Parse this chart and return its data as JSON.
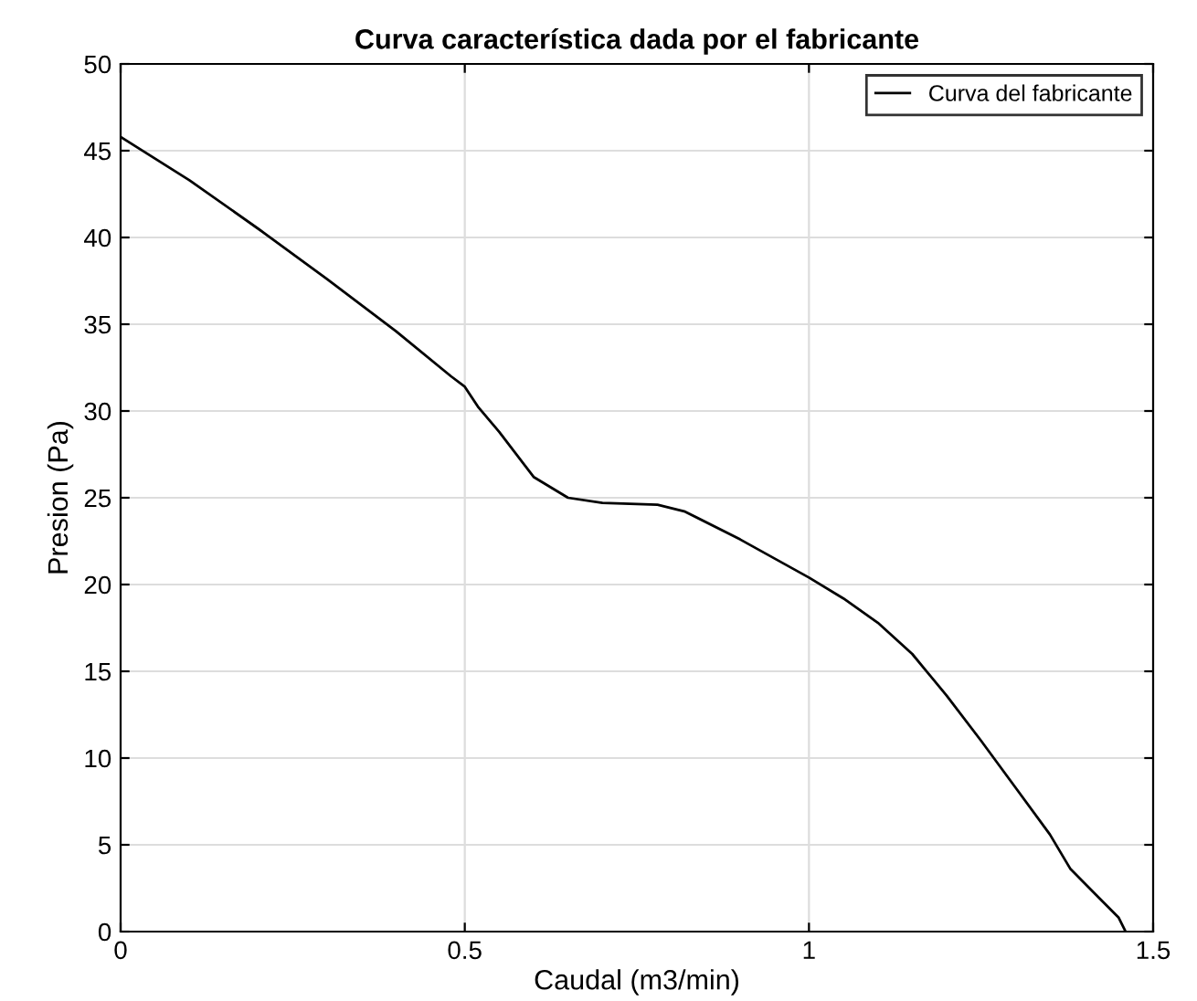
{
  "chart_data": {
    "type": "line",
    "title": "Curva característica dada por el fabricante",
    "xlabel": "Caudal (m3/min)",
    "ylabel": "Presion (Pa)",
    "series": [
      {
        "name": "Curva del fabricante",
        "color": "#000000",
        "x": [
          0,
          0.1,
          0.2,
          0.3,
          0.4,
          0.48,
          0.5,
          0.52,
          0.55,
          0.6,
          0.65,
          0.7,
          0.78,
          0.82,
          0.9,
          1.0,
          1.05,
          1.1,
          1.15,
          1.2,
          1.25,
          1.3,
          1.35,
          1.38,
          1.42,
          1.45,
          1.46
        ],
        "values": [
          45.8,
          43.3,
          40.5,
          37.6,
          34.6,
          32,
          31.4,
          30.2,
          28.8,
          26.2,
          25,
          24.7,
          24.6,
          24.2,
          22.6,
          20.4,
          19.2,
          17.8,
          16,
          13.6,
          11,
          8.3,
          5.6,
          3.6,
          2,
          0.8,
          0
        ]
      }
    ],
    "xlim": [
      0,
      1.5
    ],
    "xticks": [
      0,
      0.5,
      1,
      1.5
    ],
    "ylim": [
      0,
      50
    ],
    "yticks": [
      0,
      5,
      10,
      15,
      20,
      25,
      30,
      35,
      40,
      45,
      50
    ],
    "grid": true,
    "legend": "top right",
    "marker": "none",
    "line_style": "solid"
  }
}
